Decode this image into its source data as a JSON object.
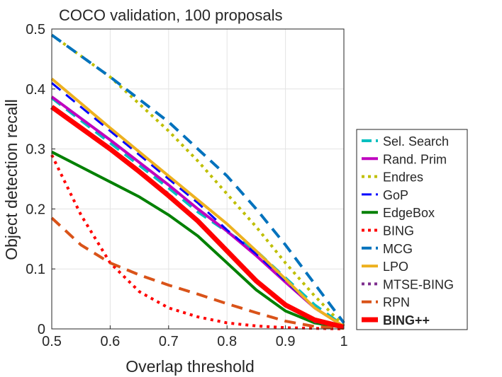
{
  "chart_data": {
    "type": "line",
    "title": "COCO validation, 100 proposals",
    "xlabel": "Overlap threshold",
    "ylabel": "Object detection recall",
    "xlim": [
      0.5,
      1
    ],
    "ylim": [
      0,
      0.5
    ],
    "xticks": [
      0.5,
      0.6,
      0.7,
      0.8,
      0.9,
      1
    ],
    "xtick_labels": [
      "0.5",
      "0.6",
      "0.7",
      "0.8",
      "0.9",
      "1"
    ],
    "yticks": [
      0,
      0.1,
      0.2,
      0.3,
      0.4,
      0.5
    ],
    "ytick_labels": [
      "0",
      "0.1",
      "0.2",
      "0.3",
      "0.4",
      "0.5"
    ],
    "grid": true,
    "legend_position": "outside-right",
    "series": [
      {
        "name": "Sel. Search",
        "color": "#00bfbf",
        "style": "dash",
        "width": 4,
        "x": [
          0.5,
          0.6,
          0.7,
          0.75,
          0.8,
          0.85,
          0.9,
          0.95,
          1.0
        ],
        "y": [
          0.385,
          0.31,
          0.235,
          0.195,
          0.162,
          0.13,
          0.085,
          0.04,
          0.005
        ]
      },
      {
        "name": "Rand. Prim",
        "color": "#bf00bf",
        "style": "solid",
        "width": 4,
        "x": [
          0.5,
          0.6,
          0.7,
          0.75,
          0.8,
          0.85,
          0.9,
          0.95,
          1.0
        ],
        "y": [
          0.387,
          0.315,
          0.24,
          0.2,
          0.163,
          0.122,
          0.078,
          0.035,
          0.004
        ]
      },
      {
        "name": "Endres",
        "color": "#bfbf00",
        "style": "dot",
        "width": 4,
        "x": [
          0.5,
          0.6,
          0.7,
          0.75,
          0.8,
          0.85,
          0.9,
          0.95,
          1.0
        ],
        "y": [
          0.49,
          0.42,
          0.33,
          0.28,
          0.225,
          0.17,
          0.11,
          0.055,
          0.005
        ]
      },
      {
        "name": "GoP",
        "color": "#0000ff",
        "style": "dash",
        "width": 3,
        "x": [
          0.5,
          0.6,
          0.7,
          0.75,
          0.8,
          0.85,
          0.9,
          0.95,
          1.0
        ],
        "y": [
          0.41,
          0.33,
          0.25,
          0.21,
          0.165,
          0.125,
          0.08,
          0.035,
          0.003
        ]
      },
      {
        "name": "EdgeBox",
        "color": "#008000",
        "style": "solid",
        "width": 4,
        "x": [
          0.5,
          0.55,
          0.6,
          0.65,
          0.7,
          0.75,
          0.8,
          0.85,
          0.9,
          0.95,
          1.0
        ],
        "y": [
          0.295,
          0.27,
          0.245,
          0.22,
          0.19,
          0.155,
          0.11,
          0.065,
          0.03,
          0.01,
          0.002
        ]
      },
      {
        "name": "BING",
        "color": "#ff0000",
        "style": "dot",
        "width": 4,
        "x": [
          0.5,
          0.55,
          0.6,
          0.65,
          0.7,
          0.75,
          0.8,
          0.85,
          0.9,
          0.95,
          1.0
        ],
        "y": [
          0.29,
          0.19,
          0.11,
          0.062,
          0.035,
          0.02,
          0.01,
          0.005,
          0.002,
          0.001,
          0.0
        ]
      },
      {
        "name": "MCG",
        "color": "#0072bd",
        "style": "dash",
        "width": 4,
        "x": [
          0.5,
          0.6,
          0.7,
          0.75,
          0.8,
          0.85,
          0.9,
          0.95,
          1.0
        ],
        "y": [
          0.49,
          0.42,
          0.345,
          0.3,
          0.255,
          0.2,
          0.14,
          0.075,
          0.01
        ]
      },
      {
        "name": "LPO",
        "color": "#edb120",
        "style": "solid",
        "width": 4,
        "x": [
          0.5,
          0.6,
          0.7,
          0.75,
          0.8,
          0.85,
          0.9,
          0.95,
          1.0
        ],
        "y": [
          0.417,
          0.335,
          0.255,
          0.215,
          0.175,
          0.13,
          0.083,
          0.035,
          0.004
        ]
      },
      {
        "name": "MTSE-BING",
        "color": "#7e2f8e",
        "style": "dot",
        "width": 4,
        "x": [
          0.5,
          0.6,
          0.7,
          0.75,
          0.8,
          0.85,
          0.9,
          0.95,
          1.0
        ],
        "y": [
          0.37,
          0.3,
          0.225,
          0.18,
          0.13,
          0.08,
          0.04,
          0.012,
          0.002
        ]
      },
      {
        "name": "RPN",
        "color": "#d95319",
        "style": "dash",
        "width": 4,
        "x": [
          0.5,
          0.55,
          0.6,
          0.65,
          0.7,
          0.75,
          0.8,
          0.85,
          0.9,
          0.95,
          1.0
        ],
        "y": [
          0.185,
          0.14,
          0.11,
          0.09,
          0.073,
          0.058,
          0.042,
          0.027,
          0.013,
          0.004,
          0.001
        ]
      },
      {
        "name": "BING++",
        "color": "#ff0000",
        "style": "solid",
        "width": 7,
        "bold": true,
        "x": [
          0.5,
          0.55,
          0.6,
          0.65,
          0.7,
          0.75,
          0.8,
          0.85,
          0.9,
          0.95,
          1.0
        ],
        "y": [
          0.37,
          0.335,
          0.3,
          0.262,
          0.222,
          0.18,
          0.13,
          0.08,
          0.04,
          0.015,
          0.003
        ]
      }
    ]
  }
}
